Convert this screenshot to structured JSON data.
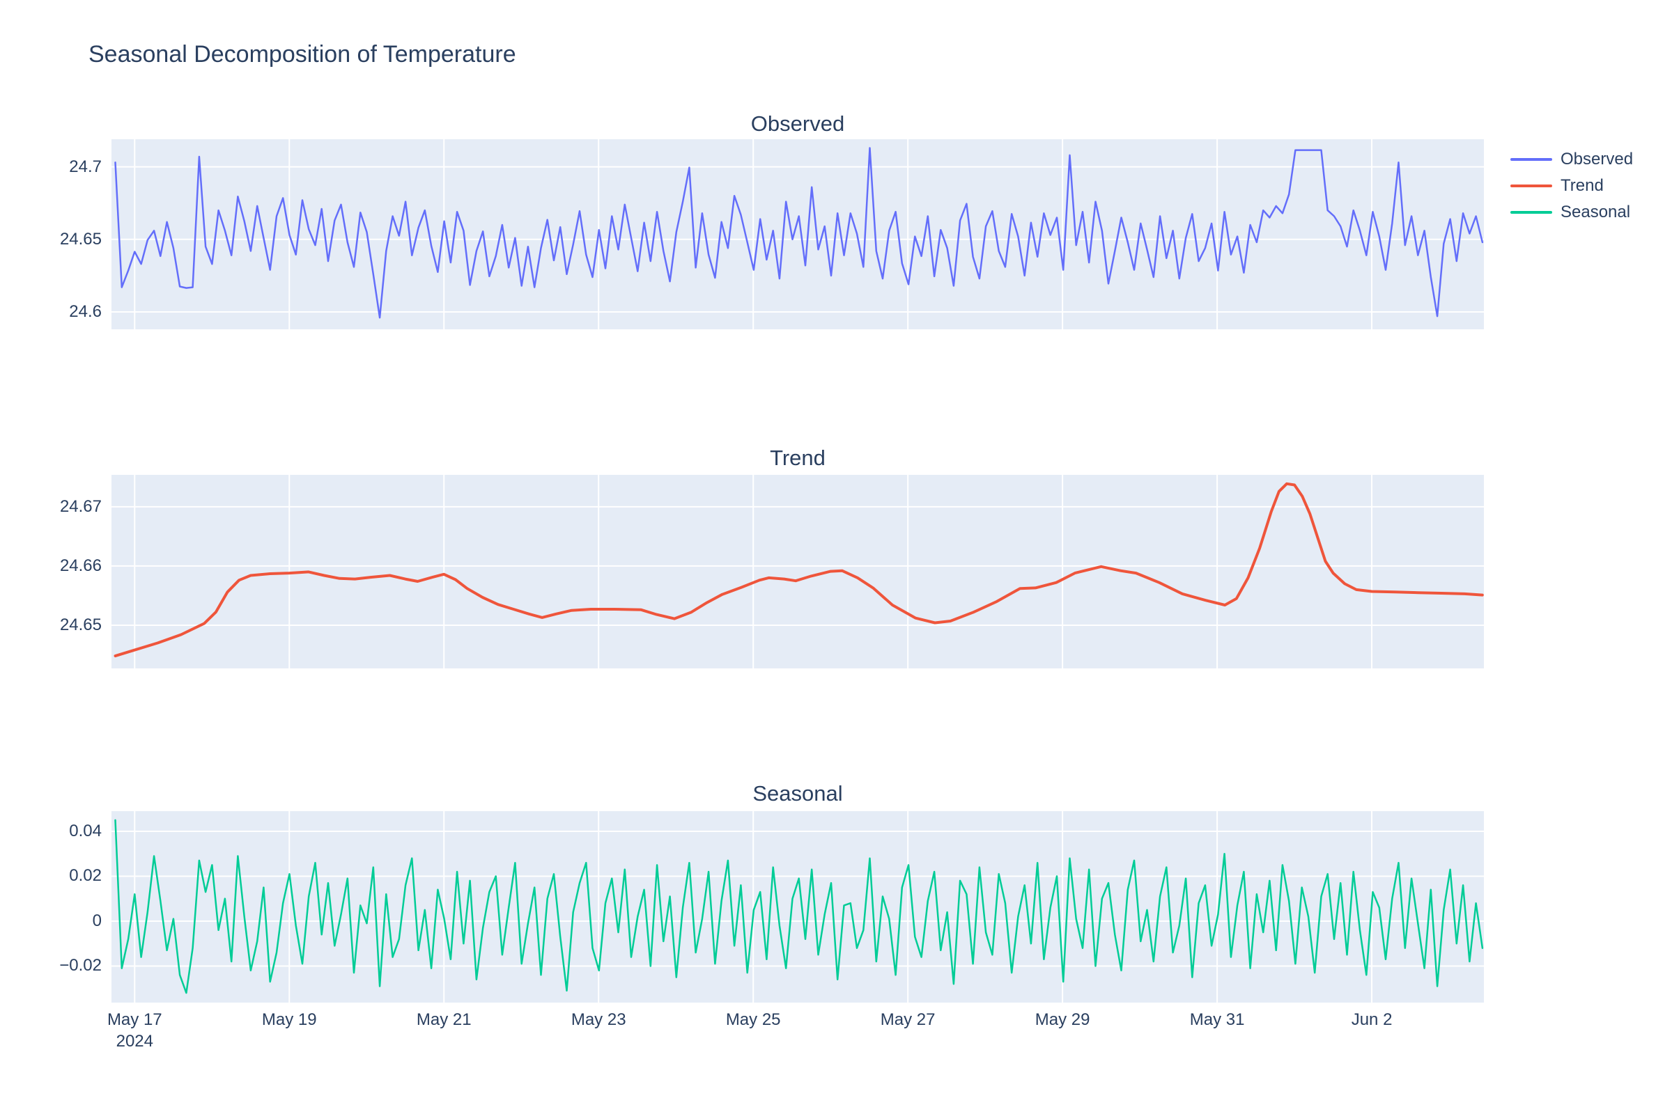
{
  "legend": {
    "items": [
      {
        "label": "Observed",
        "color": "#636efa"
      },
      {
        "label": "Trend",
        "color": "#ef553b"
      },
      {
        "label": "Seasonal",
        "color": "#00cc96"
      }
    ]
  },
  "x_axis": {
    "range_days": [
      16.7,
      34.45
    ],
    "tick_days": [
      17,
      19,
      21,
      23,
      25,
      27,
      29,
      31,
      33
    ],
    "tick_labels": [
      "May 17",
      "May 19",
      "May 21",
      "May 23",
      "May 25",
      "May 27",
      "May 29",
      "May 31",
      "Jun 2"
    ],
    "first_tick_sub_label": "2024"
  },
  "chart_data": {
    "type": "line",
    "title": "Seasonal Decomposition of Temperature",
    "legend_position": "top-right-outside",
    "grid": true,
    "plot_bg": "#e5ecf6",
    "grid_color": "#ffffff",
    "text_color": "#2a3f5f",
    "panels": [
      {
        "name": "Observed",
        "color": "#636efa",
        "line_width": 2.5,
        "y_range": [
          24.588,
          24.719
        ],
        "y_ticks": {
          "values": [
            24.6,
            24.65,
            24.7
          ],
          "labels": [
            "24.6",
            "24.65",
            "24.7"
          ]
        },
        "x0_day": 16.75,
        "dx_day": 0.0834,
        "values": [
          24.703,
          24.617,
          24.6285,
          24.6415,
          24.633,
          24.6495,
          24.656,
          24.6385,
          24.662,
          24.644,
          24.6175,
          24.6165,
          24.617,
          24.707,
          24.645,
          24.633,
          24.67,
          24.656,
          24.639,
          24.6795,
          24.6625,
          24.642,
          24.673,
          24.651,
          24.629,
          24.666,
          24.6785,
          24.653,
          24.6395,
          24.677,
          24.657,
          24.646,
          24.671,
          24.635,
          24.663,
          24.674,
          24.648,
          24.631,
          24.6685,
          24.655,
          24.626,
          24.596,
          24.642,
          24.666,
          24.6525,
          24.676,
          24.639,
          24.658,
          24.67,
          24.6455,
          24.6275,
          24.6625,
          24.634,
          24.669,
          24.656,
          24.6185,
          24.642,
          24.6555,
          24.6245,
          24.6385,
          24.66,
          24.6305,
          24.651,
          24.618,
          24.645,
          24.617,
          24.644,
          24.6635,
          24.6355,
          24.6585,
          24.626,
          24.6465,
          24.6695,
          24.6395,
          24.624,
          24.6565,
          24.63,
          24.666,
          24.643,
          24.674,
          24.651,
          24.628,
          24.6615,
          24.635,
          24.669,
          24.642,
          24.621,
          24.655,
          24.676,
          24.6995,
          24.6305,
          24.668,
          24.6395,
          24.6235,
          24.662,
          24.644,
          24.68,
          24.667,
          24.648,
          24.629,
          24.664,
          24.636,
          24.656,
          24.623,
          24.676,
          24.65,
          24.666,
          24.632,
          24.686,
          24.643,
          24.659,
          24.625,
          24.668,
          24.639,
          24.668,
          24.654,
          24.631,
          24.713,
          24.642,
          24.623,
          24.656,
          24.669,
          24.6335,
          24.619,
          24.652,
          24.6385,
          24.666,
          24.6245,
          24.6565,
          24.644,
          24.618,
          24.663,
          24.6745,
          24.638,
          24.623,
          24.659,
          24.6695,
          24.642,
          24.631,
          24.6675,
          24.652,
          24.625,
          24.6615,
          24.638,
          24.668,
          24.653,
          24.665,
          24.629,
          24.708,
          24.646,
          24.669,
          24.634,
          24.676,
          24.656,
          24.6195,
          24.642,
          24.665,
          24.648,
          24.629,
          24.661,
          24.643,
          24.624,
          24.666,
          24.637,
          24.656,
          24.623,
          24.651,
          24.6675,
          24.635,
          24.644,
          24.661,
          24.6285,
          24.669,
          24.6395,
          24.652,
          24.627,
          24.66,
          24.648,
          24.67,
          24.665,
          24.673,
          24.668,
          24.681,
          24.7115,
          24.7115,
          24.7115,
          24.7115,
          24.7115,
          24.67,
          24.666,
          24.659,
          24.645,
          24.67,
          24.656,
          24.639,
          24.669,
          24.652,
          24.629,
          24.661,
          24.703,
          24.646,
          24.666,
          24.639,
          24.656,
          24.624,
          24.597,
          24.647,
          24.664,
          24.635,
          24.668,
          24.654,
          24.666,
          24.648
        ]
      },
      {
        "name": "Trend",
        "color": "#ef553b",
        "line_width": 4,
        "y_range": [
          24.6427,
          24.6754
        ],
        "y_ticks": {
          "values": [
            24.65,
            24.66,
            24.67
          ],
          "labels": [
            "24.65",
            "24.66",
            "24.67"
          ]
        },
        "points": [
          [
            16.75,
            24.6448
          ],
          [
            17.0,
            24.6458
          ],
          [
            17.3,
            24.647
          ],
          [
            17.6,
            24.6484
          ],
          [
            17.9,
            24.6503
          ],
          [
            18.05,
            24.6522
          ],
          [
            18.2,
            24.6556
          ],
          [
            18.35,
            24.6576
          ],
          [
            18.5,
            24.6584
          ],
          [
            18.75,
            24.6587
          ],
          [
            19.0,
            24.6588
          ],
          [
            19.25,
            24.659
          ],
          [
            19.45,
            24.6584
          ],
          [
            19.65,
            24.6579
          ],
          [
            19.85,
            24.6578
          ],
          [
            20.05,
            24.6581
          ],
          [
            20.3,
            24.6584
          ],
          [
            20.5,
            24.6578
          ],
          [
            20.66,
            24.6574
          ],
          [
            20.85,
            24.6581
          ],
          [
            21.0,
            24.6586
          ],
          [
            21.15,
            24.6577
          ],
          [
            21.3,
            24.6562
          ],
          [
            21.5,
            24.6547
          ],
          [
            21.7,
            24.6535
          ],
          [
            21.9,
            24.6527
          ],
          [
            22.1,
            24.6519
          ],
          [
            22.27,
            24.6513
          ],
          [
            22.45,
            24.6519
          ],
          [
            22.65,
            24.6525
          ],
          [
            22.9,
            24.6527
          ],
          [
            23.2,
            24.6527
          ],
          [
            23.55,
            24.6526
          ],
          [
            23.75,
            24.6518
          ],
          [
            23.98,
            24.6511
          ],
          [
            24.2,
            24.6522
          ],
          [
            24.4,
            24.6538
          ],
          [
            24.6,
            24.6552
          ],
          [
            24.85,
            24.6564
          ],
          [
            25.08,
            24.6576
          ],
          [
            25.2,
            24.658
          ],
          [
            25.4,
            24.6578
          ],
          [
            25.55,
            24.6575
          ],
          [
            25.75,
            24.6583
          ],
          [
            26.0,
            24.6591
          ],
          [
            26.15,
            24.6592
          ],
          [
            26.35,
            24.658
          ],
          [
            26.55,
            24.6563
          ],
          [
            26.8,
            24.6534
          ],
          [
            27.1,
            24.6512
          ],
          [
            27.35,
            24.6504
          ],
          [
            27.55,
            24.6507
          ],
          [
            27.85,
            24.6522
          ],
          [
            28.15,
            24.654
          ],
          [
            28.45,
            24.6562
          ],
          [
            28.65,
            24.6563
          ],
          [
            28.92,
            24.6572
          ],
          [
            29.16,
            24.6588
          ],
          [
            29.5,
            24.6599
          ],
          [
            29.75,
            24.6592
          ],
          [
            29.95,
            24.6588
          ],
          [
            30.25,
            24.6572
          ],
          [
            30.55,
            24.6553
          ],
          [
            30.85,
            24.6542
          ],
          [
            31.1,
            24.6534
          ],
          [
            31.25,
            24.6545
          ],
          [
            31.4,
            24.658
          ],
          [
            31.55,
            24.663
          ],
          [
            31.7,
            24.6692
          ],
          [
            31.8,
            24.6726
          ],
          [
            31.9,
            24.6739
          ],
          [
            32.0,
            24.6737
          ],
          [
            32.1,
            24.6718
          ],
          [
            32.2,
            24.6688
          ],
          [
            32.3,
            24.6648
          ],
          [
            32.4,
            24.6608
          ],
          [
            32.5,
            24.6588
          ],
          [
            32.65,
            24.657
          ],
          [
            32.8,
            24.656
          ],
          [
            33.0,
            24.6557
          ],
          [
            33.3,
            24.6556
          ],
          [
            33.6,
            24.6555
          ],
          [
            33.9,
            24.6554
          ],
          [
            34.2,
            24.6553
          ],
          [
            34.43,
            24.6551
          ]
        ]
      },
      {
        "name": "Seasonal",
        "color": "#00cc96",
        "line_width": 2.5,
        "y_range": [
          -0.0363,
          0.049
        ],
        "y_ticks": {
          "values": [
            -0.02,
            0,
            0.02,
            0.04
          ],
          "labels": [
            "−0.02",
            "0",
            "0.02",
            "0.04"
          ]
        },
        "x0_day": 16.75,
        "dx_day": 0.0834,
        "values": [
          0.045,
          -0.021,
          -0.008,
          0.012,
          -0.016,
          0.004,
          0.029,
          0.009,
          -0.013,
          0.001,
          -0.024,
          -0.032,
          -0.012,
          0.027,
          0.013,
          0.025,
          -0.004,
          0.01,
          -0.018,
          0.029,
          0.002,
          -0.022,
          -0.009,
          0.015,
          -0.027,
          -0.014,
          0.008,
          0.021,
          -0.002,
          -0.019,
          0.011,
          0.026,
          -0.006,
          0.017,
          -0.011,
          0.003,
          0.019,
          -0.023,
          0.007,
          -0.001,
          0.024,
          -0.029,
          0.012,
          -0.016,
          -0.008,
          0.016,
          0.028,
          -0.013,
          0.005,
          -0.021,
          0.014,
          0.001,
          -0.017,
          0.022,
          -0.01,
          0.018,
          -0.026,
          -0.003,
          0.013,
          0.02,
          -0.015,
          0.006,
          0.026,
          -0.019,
          -0.001,
          0.015,
          -0.024,
          0.01,
          0.021,
          -0.007,
          -0.031,
          0.004,
          0.017,
          0.026,
          -0.012,
          -0.022,
          0.008,
          0.019,
          -0.005,
          0.023,
          -0.016,
          0.002,
          0.014,
          -0.02,
          0.025,
          -0.009,
          0.011,
          -0.025,
          0.006,
          0.026,
          -0.014,
          0.001,
          0.022,
          -0.019,
          0.009,
          0.027,
          -0.011,
          0.016,
          -0.023,
          0.005,
          0.013,
          -0.017,
          0.024,
          -0.002,
          -0.021,
          0.01,
          0.019,
          -0.008,
          0.023,
          -0.015,
          0.003,
          0.017,
          -0.026,
          0.007,
          0.008,
          -0.012,
          -0.004,
          0.028,
          -0.018,
          0.011,
          0.001,
          -0.024,
          0.015,
          0.025,
          -0.007,
          -0.016,
          0.009,
          0.022,
          -0.013,
          0.004,
          -0.028,
          0.018,
          0.012,
          -0.019,
          0.024,
          -0.005,
          -0.015,
          0.021,
          0.008,
          -0.023,
          0.002,
          0.016,
          -0.01,
          0.026,
          -0.017,
          0.006,
          0.02,
          -0.027,
          0.028,
          0.001,
          -0.012,
          0.023,
          -0.02,
          0.01,
          0.017,
          -0.006,
          -0.022,
          0.014,
          0.027,
          -0.009,
          0.005,
          -0.018,
          0.011,
          0.024,
          -0.014,
          -0.002,
          0.019,
          -0.025,
          0.008,
          0.016,
          -0.011,
          0.003,
          0.03,
          -0.016,
          0.007,
          0.022,
          -0.021,
          0.012,
          -0.005,
          0.018,
          -0.013,
          0.025,
          0.009,
          -0.019,
          0.015,
          0.002,
          -0.023,
          0.011,
          0.021,
          -0.008,
          0.017,
          -0.015,
          0.022,
          -0.004,
          -0.024,
          0.013,
          0.006,
          -0.017,
          0.01,
          0.026,
          -0.012,
          0.019,
          -0.001,
          -0.021,
          0.014,
          -0.029,
          0.005,
          0.023,
          -0.01,
          0.016,
          -0.018,
          0.008,
          -0.012
        ]
      }
    ]
  }
}
